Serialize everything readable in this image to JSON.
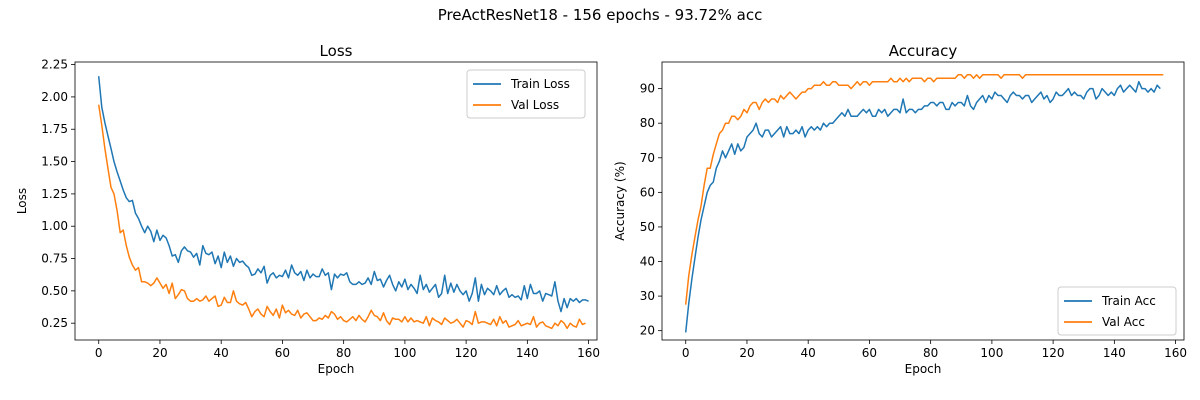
{
  "figure": {
    "suptitle": "PreActResNet18 - 156 epochs - 93.72% acc"
  },
  "chart_data": [
    {
      "type": "line",
      "title": "Loss",
      "xlabel": "Epoch",
      "ylabel": "Loss",
      "xlim": [
        -7.75,
        162.75
      ],
      "ylim": [
        0.12,
        2.27
      ],
      "xticks": [
        0,
        20,
        40,
        60,
        80,
        100,
        120,
        140,
        160
      ],
      "yticks": [
        0.25,
        0.5,
        0.75,
        1.0,
        1.25,
        1.5,
        1.75,
        2.0,
        2.25
      ],
      "ytick_labels": [
        "0.25",
        "0.50",
        "0.75",
        "1.00",
        "1.25",
        "1.50",
        "1.75",
        "2.00",
        "2.25"
      ],
      "grid": false,
      "legend_position": "upper-right",
      "series": [
        {
          "name": "Train Loss",
          "color": "#1f77b4",
          "values": [
            2.16,
            1.92,
            1.8,
            1.7,
            1.6,
            1.5,
            1.42,
            1.35,
            1.28,
            1.22,
            1.19,
            1.2,
            1.1,
            1.06,
            1.0,
            0.95,
            1.0,
            0.96,
            0.88,
            0.97,
            0.89,
            0.93,
            0.91,
            0.85,
            0.77,
            0.78,
            0.72,
            0.81,
            0.84,
            0.81,
            0.8,
            0.76,
            0.79,
            0.7,
            0.85,
            0.79,
            0.78,
            0.8,
            0.71,
            0.77,
            0.68,
            0.8,
            0.72,
            0.77,
            0.69,
            0.75,
            0.72,
            0.73,
            0.7,
            0.68,
            0.62,
            0.63,
            0.67,
            0.64,
            0.69,
            0.56,
            0.62,
            0.64,
            0.6,
            0.62,
            0.61,
            0.66,
            0.6,
            0.7,
            0.64,
            0.62,
            0.65,
            0.58,
            0.66,
            0.6,
            0.63,
            0.61,
            0.61,
            0.67,
            0.62,
            0.64,
            0.51,
            0.63,
            0.6,
            0.63,
            0.62,
            0.64,
            0.57,
            0.55,
            0.55,
            0.57,
            0.55,
            0.56,
            0.6,
            0.55,
            0.65,
            0.58,
            0.59,
            0.53,
            0.58,
            0.62,
            0.55,
            0.5,
            0.57,
            0.53,
            0.59,
            0.51,
            0.55,
            0.52,
            0.48,
            0.62,
            0.51,
            0.55,
            0.49,
            0.52,
            0.55,
            0.45,
            0.48,
            0.62,
            0.48,
            0.56,
            0.49,
            0.55,
            0.5,
            0.47,
            0.5,
            0.42,
            0.48,
            0.6,
            0.42,
            0.55,
            0.47,
            0.52,
            0.5,
            0.47,
            0.54,
            0.47,
            0.5,
            0.52,
            0.45,
            0.47,
            0.45,
            0.46,
            0.43,
            0.54,
            0.44,
            0.55,
            0.48,
            0.48,
            0.5,
            0.42,
            0.48,
            0.47,
            0.46,
            0.57,
            0.42,
            0.34,
            0.44,
            0.37,
            0.44,
            0.42,
            0.44,
            0.41,
            0.43,
            0.43,
            0.42
          ]
        },
        {
          "name": "Val Loss",
          "color": "#ff7f0e",
          "values": [
            1.94,
            1.78,
            1.6,
            1.45,
            1.3,
            1.25,
            1.12,
            0.95,
            0.97,
            0.85,
            0.76,
            0.7,
            0.66,
            0.68,
            0.57,
            0.57,
            0.56,
            0.54,
            0.56,
            0.6,
            0.56,
            0.52,
            0.55,
            0.48,
            0.56,
            0.44,
            0.47,
            0.51,
            0.5,
            0.44,
            0.42,
            0.42,
            0.44,
            0.42,
            0.43,
            0.46,
            0.42,
            0.44,
            0.46,
            0.38,
            0.39,
            0.45,
            0.41,
            0.41,
            0.5,
            0.42,
            0.4,
            0.39,
            0.41,
            0.36,
            0.3,
            0.34,
            0.36,
            0.32,
            0.3,
            0.38,
            0.34,
            0.31,
            0.36,
            0.29,
            0.39,
            0.33,
            0.35,
            0.32,
            0.31,
            0.35,
            0.29,
            0.32,
            0.33,
            0.3,
            0.27,
            0.27,
            0.29,
            0.28,
            0.31,
            0.29,
            0.34,
            0.32,
            0.28,
            0.3,
            0.27,
            0.26,
            0.28,
            0.3,
            0.27,
            0.31,
            0.28,
            0.26,
            0.3,
            0.35,
            0.31,
            0.3,
            0.27,
            0.33,
            0.27,
            0.24,
            0.29,
            0.28,
            0.28,
            0.26,
            0.3,
            0.26,
            0.29,
            0.26,
            0.27,
            0.26,
            0.25,
            0.3,
            0.23,
            0.29,
            0.27,
            0.26,
            0.24,
            0.29,
            0.27,
            0.25,
            0.26,
            0.28,
            0.25,
            0.22,
            0.27,
            0.26,
            0.24,
            0.34,
            0.25,
            0.26,
            0.26,
            0.25,
            0.24,
            0.28,
            0.23,
            0.3,
            0.25,
            0.27,
            0.22,
            0.23,
            0.24,
            0.27,
            0.23,
            0.24,
            0.25,
            0.24,
            0.3,
            0.22,
            0.25,
            0.26,
            0.23,
            0.22,
            0.21,
            0.25,
            0.23,
            0.27,
            0.25,
            0.21,
            0.25,
            0.23,
            0.22,
            0.28,
            0.24,
            0.25
          ]
        }
      ]
    },
    {
      "type": "line",
      "title": "Accuracy",
      "xlabel": "Epoch",
      "ylabel": "Accuracy (%)",
      "xlim": [
        -7.75,
        162.75
      ],
      "ylim": [
        17.3,
        97.7
      ],
      "xticks": [
        0,
        20,
        40,
        60,
        80,
        100,
        120,
        140,
        160
      ],
      "yticks": [
        20,
        30,
        40,
        50,
        60,
        70,
        80,
        90
      ],
      "ytick_labels": [
        "20",
        "30",
        "40",
        "50",
        "60",
        "70",
        "80",
        "90"
      ],
      "grid": false,
      "legend_position": "lower-right",
      "series": [
        {
          "name": "Train Acc",
          "color": "#1f77b4",
          "values": [
            19.5,
            28,
            35,
            41,
            47,
            52,
            56,
            60,
            62,
            63,
            67,
            69,
            72,
            70,
            72,
            74,
            71,
            74,
            72,
            73,
            76,
            77,
            78,
            80,
            77,
            76,
            78,
            78,
            76,
            77,
            78,
            79,
            76,
            79,
            77,
            77,
            78,
            77,
            79,
            76,
            78,
            79,
            78,
            79,
            78,
            80,
            79,
            80,
            80,
            81,
            82,
            83,
            82,
            84,
            82,
            82,
            82,
            83,
            84,
            83,
            84,
            82,
            82,
            84,
            83,
            84,
            82,
            83,
            84,
            84,
            83,
            87,
            83,
            84,
            84,
            83,
            84,
            84,
            85,
            85,
            86,
            86,
            85,
            86,
            86,
            84,
            84,
            86,
            85,
            86,
            86,
            85,
            88,
            85,
            84,
            86,
            87,
            88,
            86,
            88,
            87,
            89,
            88,
            88,
            87,
            86,
            88,
            89,
            88,
            88,
            87,
            88,
            88,
            86,
            87,
            88,
            89,
            87,
            88,
            86,
            87,
            89,
            88,
            88,
            89,
            90,
            88,
            89,
            88,
            88,
            87,
            89,
            90,
            90,
            87,
            88,
            90,
            89,
            88,
            89,
            88,
            90,
            91,
            89,
            90,
            91,
            90,
            89,
            92,
            90,
            90,
            89,
            90,
            89,
            91,
            90
          ]
        },
        {
          "name": "Val Acc",
          "color": "#ff7f0e",
          "values": [
            27.5,
            36,
            42,
            47,
            52,
            56,
            62,
            67,
            67,
            71,
            74,
            77,
            78,
            80,
            80,
            82,
            82,
            81,
            82,
            84,
            83,
            85,
            86,
            86,
            84,
            86,
            87,
            86,
            87,
            87,
            86,
            88,
            87,
            88,
            89,
            88,
            87,
            88,
            89,
            89,
            90,
            90,
            91,
            91,
            91,
            92,
            91,
            91,
            92,
            92,
            91,
            91,
            91,
            91,
            90,
            91,
            92,
            91,
            92,
            92,
            91,
            92,
            92,
            92,
            92,
            92,
            92,
            93,
            92,
            92,
            93,
            92,
            93,
            92,
            93,
            93,
            93,
            93,
            92,
            93,
            93,
            92,
            93,
            93,
            93,
            93,
            93,
            93,
            93,
            94,
            94,
            93,
            94,
            94,
            93,
            94,
            93,
            94,
            94,
            94,
            94,
            94,
            94,
            93,
            94,
            94,
            94,
            94,
            94,
            94,
            93,
            94,
            94,
            94,
            94,
            94,
            94,
            94,
            94,
            94,
            94,
            94,
            94,
            94,
            94,
            94,
            94,
            94,
            94,
            94,
            94,
            94,
            94,
            94,
            94,
            94,
            94,
            94,
            94,
            94,
            94,
            94,
            94,
            94,
            94,
            94,
            94,
            94,
            94,
            94,
            94,
            94,
            94,
            94,
            94,
            94,
            94
          ]
        }
      ]
    }
  ]
}
